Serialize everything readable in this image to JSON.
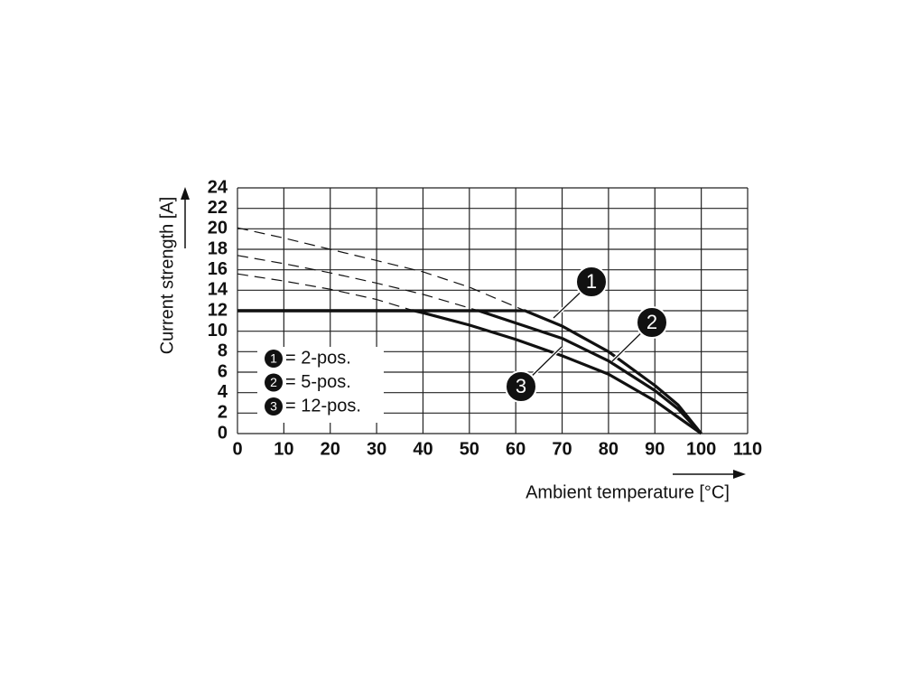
{
  "chart_data": {
    "type": "line",
    "x_label": "Ambient temperature [°C]",
    "y_label": "Current strength [A]",
    "xlim": [
      0,
      110
    ],
    "xticks": [
      0,
      10,
      20,
      30,
      40,
      50,
      60,
      70,
      80,
      90,
      100,
      110
    ],
    "ylim": [
      0,
      24
    ],
    "yticks": [
      0,
      2,
      4,
      6,
      8,
      10,
      12,
      14,
      16,
      18,
      20,
      22,
      24
    ],
    "grid": true,
    "legend": "lower left",
    "series": [
      {
        "name": "= 2-pos.",
        "marker": "1",
        "color": "#111111",
        "x": [
          0,
          62,
          70,
          80,
          90,
          95,
          100
        ],
        "values": [
          12,
          12,
          10.5,
          8,
          4.7,
          2.8,
          0
        ]
      },
      {
        "name": "= 5-pos.",
        "marker": "2",
        "color": "#111111",
        "x": [
          0,
          52,
          60,
          70,
          80,
          90,
          95,
          100
        ],
        "values": [
          12,
          12,
          10.8,
          9.3,
          7.1,
          4.2,
          2.4,
          0
        ]
      },
      {
        "name": "= 12-pos.",
        "marker": "3",
        "color": "#111111",
        "x": [
          0,
          38,
          40,
          50,
          60,
          70,
          80,
          90,
          100
        ],
        "values": [
          12,
          12,
          11.8,
          10.6,
          9.2,
          7.6,
          5.8,
          3.2,
          0
        ]
      },
      {
        "style": "dashed",
        "color": "#111111",
        "x": [
          0,
          10,
          20,
          30,
          40,
          50,
          62
        ],
        "values": [
          20.1,
          19.1,
          18,
          16.9,
          15.8,
          14.3,
          12
        ]
      },
      {
        "style": "dashed",
        "color": "#111111",
        "x": [
          0,
          10,
          20,
          30,
          40,
          52
        ],
        "values": [
          17.4,
          16.6,
          15.7,
          14.7,
          13.6,
          12
        ]
      },
      {
        "style": "dashed",
        "color": "#111111",
        "x": [
          0,
          10,
          20,
          30,
          38
        ],
        "values": [
          15.6,
          14.9,
          14.1,
          13.1,
          12
        ]
      }
    ]
  }
}
